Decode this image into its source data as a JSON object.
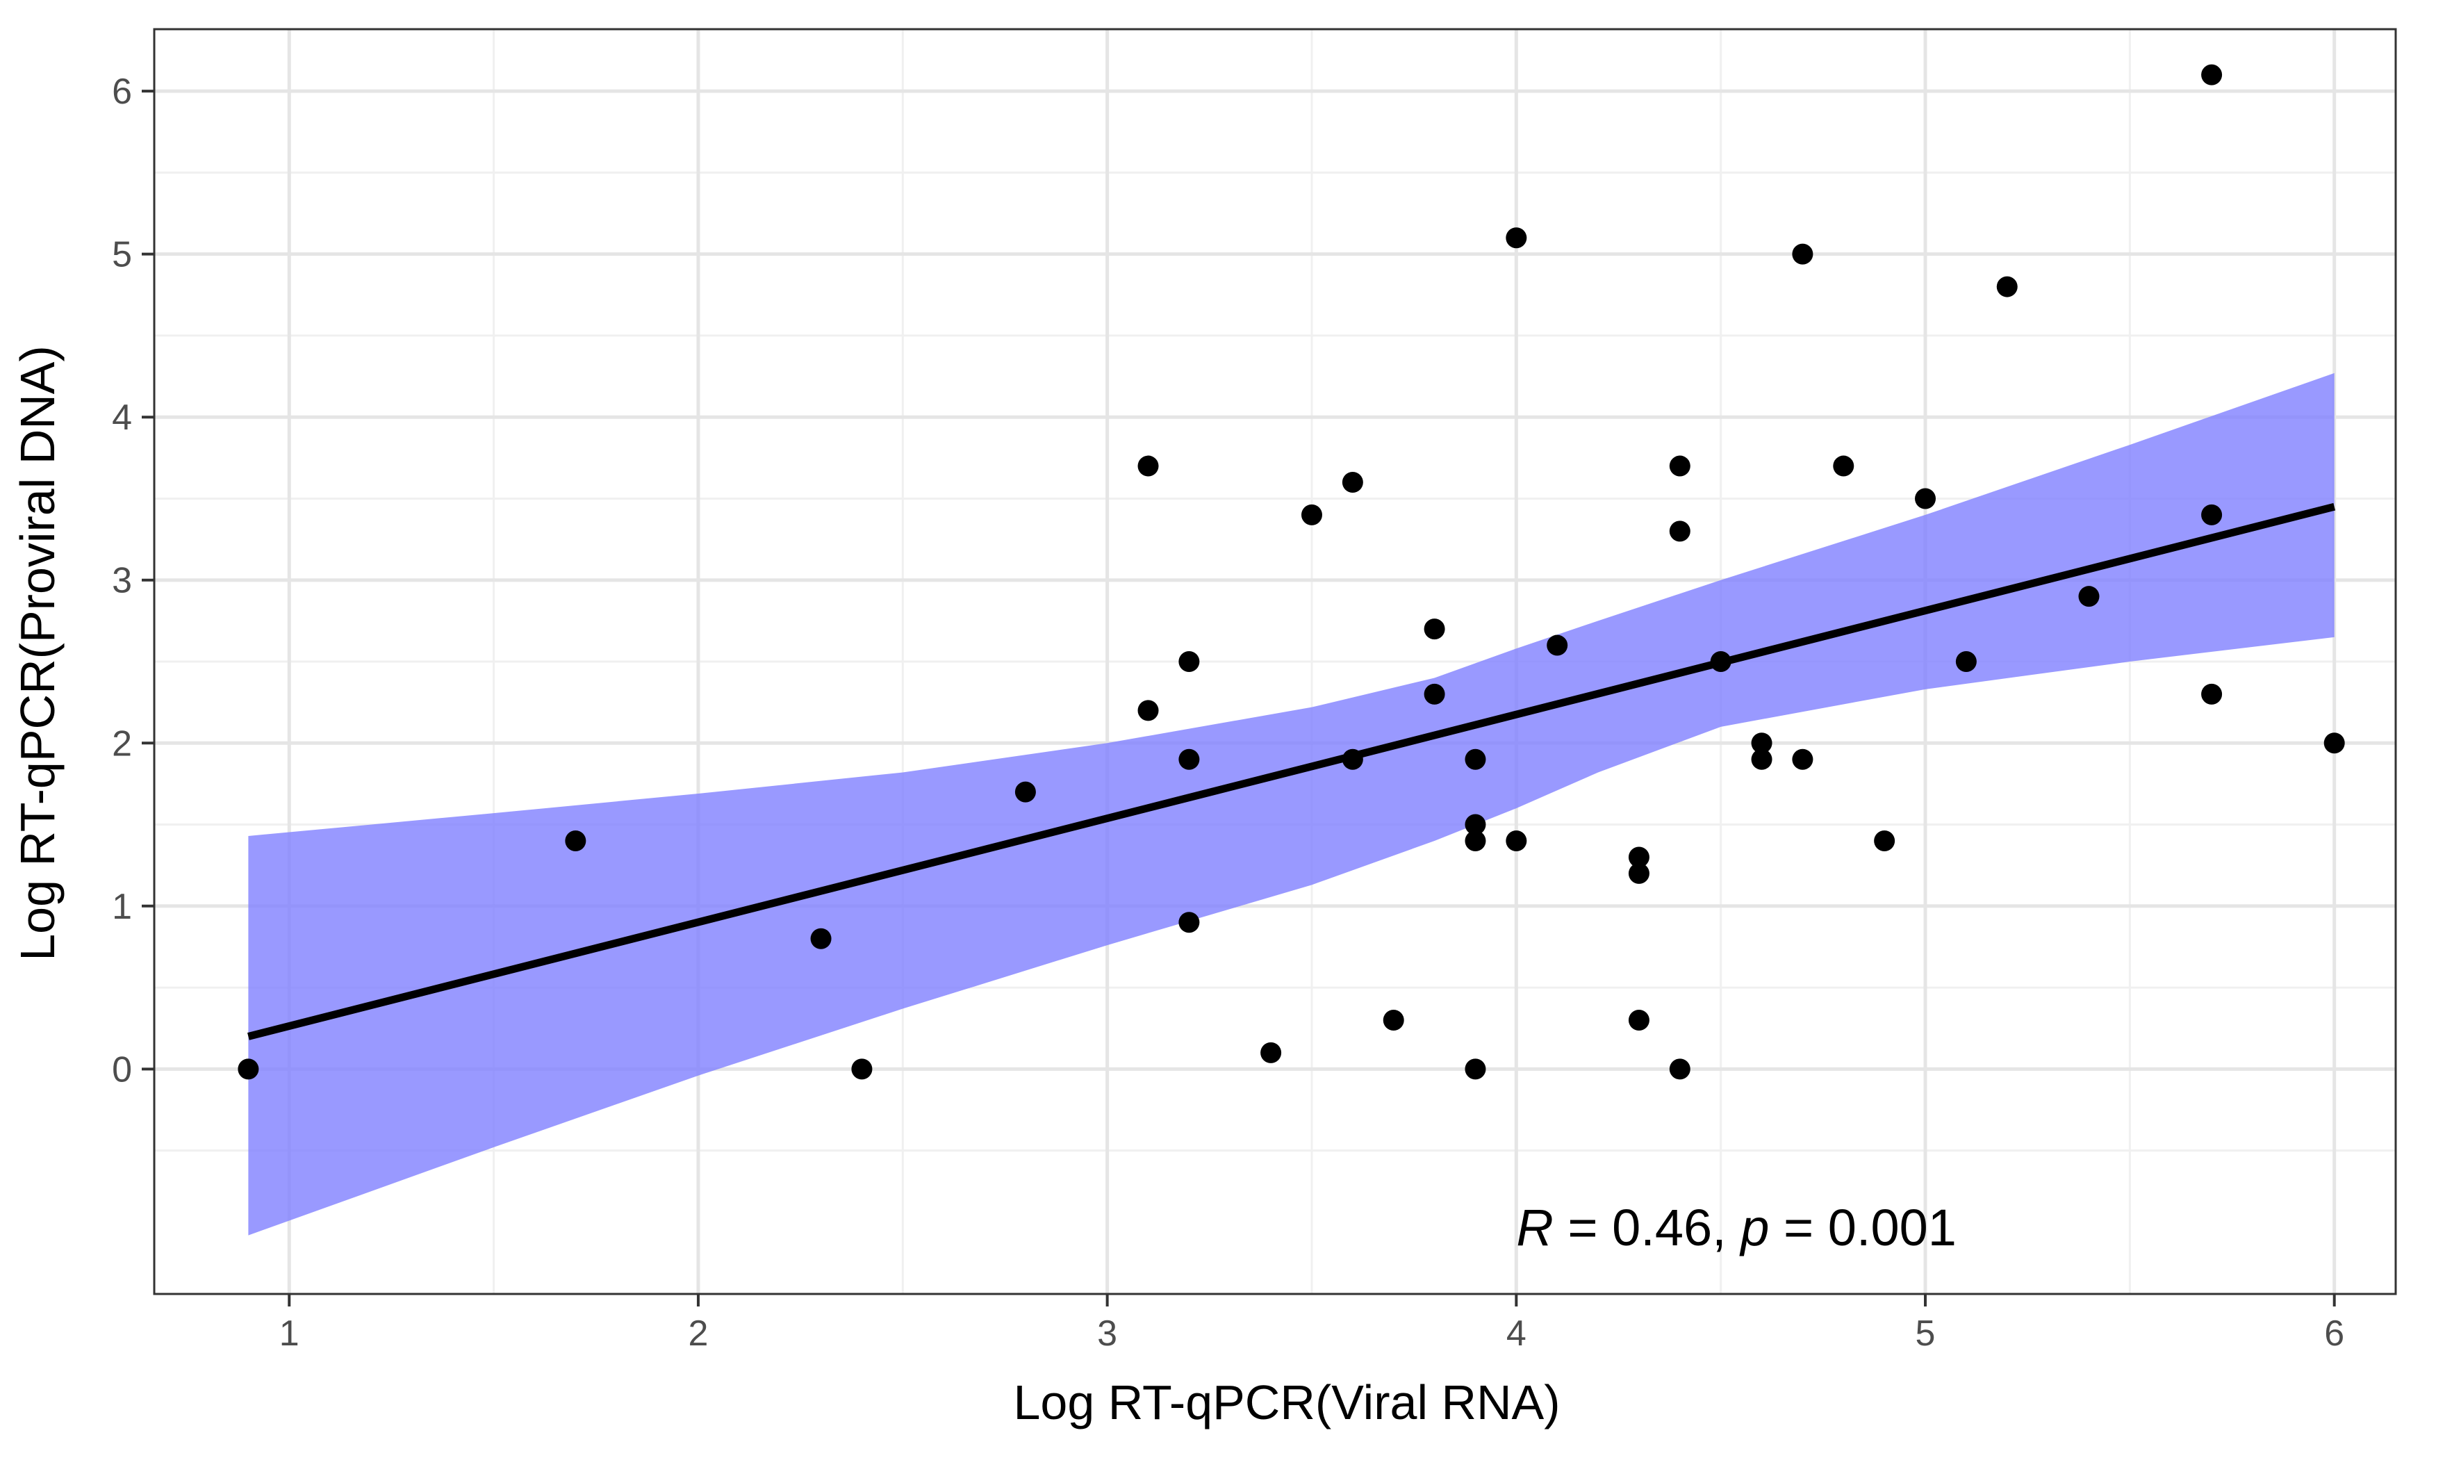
{
  "chart_data": {
    "type": "scatter",
    "title": "",
    "xlabel": "Log RT-qPCR(Viral RNA)",
    "ylabel": "Log RT-qPCR(Proviral DNA)",
    "xlim": [
      0.67,
      6.15
    ],
    "ylim": [
      -1.38,
      6.38
    ],
    "xticks": [
      1,
      2,
      3,
      4,
      5,
      6
    ],
    "yticks": [
      0,
      1,
      2,
      3,
      4,
      5,
      6
    ],
    "xtick_labels": [
      "1",
      "2",
      "3",
      "4",
      "5",
      "6"
    ],
    "ytick_labels": [
      "0",
      "1",
      "2",
      "3",
      "4",
      "5",
      "6"
    ],
    "grid": true,
    "point_color": "#000000",
    "line_color": "#000000",
    "band_color": "#8080ff",
    "points": [
      {
        "x": 0.9,
        "y": 0.0
      },
      {
        "x": 1.7,
        "y": 1.4
      },
      {
        "x": 2.3,
        "y": 0.8
      },
      {
        "x": 2.4,
        "y": 0.0
      },
      {
        "x": 2.8,
        "y": 1.7
      },
      {
        "x": 3.1,
        "y": 3.7
      },
      {
        "x": 3.1,
        "y": 2.2
      },
      {
        "x": 3.2,
        "y": 2.5
      },
      {
        "x": 3.2,
        "y": 1.9
      },
      {
        "x": 3.2,
        "y": 0.9
      },
      {
        "x": 3.4,
        "y": 0.1
      },
      {
        "x": 3.5,
        "y": 3.4
      },
      {
        "x": 3.6,
        "y": 3.6
      },
      {
        "x": 3.6,
        "y": 1.9
      },
      {
        "x": 3.7,
        "y": 0.3
      },
      {
        "x": 3.8,
        "y": 2.7
      },
      {
        "x": 3.8,
        "y": 2.3
      },
      {
        "x": 3.9,
        "y": 1.9
      },
      {
        "x": 3.9,
        "y": 1.5
      },
      {
        "x": 3.9,
        "y": 1.4
      },
      {
        "x": 3.9,
        "y": 0.0
      },
      {
        "x": 4.0,
        "y": 5.1
      },
      {
        "x": 4.0,
        "y": 1.4
      },
      {
        "x": 4.1,
        "y": 2.6
      },
      {
        "x": 4.3,
        "y": 1.3
      },
      {
        "x": 4.3,
        "y": 1.2
      },
      {
        "x": 4.3,
        "y": 0.3
      },
      {
        "x": 4.4,
        "y": 3.7
      },
      {
        "x": 4.4,
        "y": 3.3
      },
      {
        "x": 4.4,
        "y": 0.0
      },
      {
        "x": 4.5,
        "y": 2.5
      },
      {
        "x": 4.6,
        "y": 2.0
      },
      {
        "x": 4.6,
        "y": 1.9
      },
      {
        "x": 4.7,
        "y": 5.0
      },
      {
        "x": 4.7,
        "y": 1.9
      },
      {
        "x": 4.8,
        "y": 3.7
      },
      {
        "x": 4.9,
        "y": 1.4
      },
      {
        "x": 5.0,
        "y": 3.5
      },
      {
        "x": 5.1,
        "y": 2.5
      },
      {
        "x": 5.2,
        "y": 4.8
      },
      {
        "x": 5.4,
        "y": 2.9
      },
      {
        "x": 5.7,
        "y": 6.1
      },
      {
        "x": 5.7,
        "y": 3.4
      },
      {
        "x": 5.7,
        "y": 2.3
      },
      {
        "x": 6.0,
        "y": 2.0
      }
    ],
    "regression": {
      "x": [
        0.9,
        6.0
      ],
      "y": [
        0.2,
        3.45
      ]
    },
    "confidence_band": {
      "x": [
        0.9,
        1.5,
        2.0,
        2.5,
        3.0,
        3.5,
        3.8,
        4.0,
        4.2,
        4.5,
        5.0,
        5.5,
        6.0
      ],
      "lower": [
        -1.02,
        -0.48,
        -0.04,
        0.37,
        0.76,
        1.13,
        1.4,
        1.6,
        1.82,
        2.1,
        2.33,
        2.5,
        2.65
      ],
      "upper": [
        1.43,
        1.57,
        1.69,
        1.82,
        2.0,
        2.22,
        2.4,
        2.58,
        2.75,
        3.0,
        3.4,
        3.83,
        4.27
      ]
    },
    "annotation": {
      "r_label": "R",
      "r_text": " = 0.46, ",
      "p_label": "p",
      "p_text": " = 0.001",
      "x": 4.0,
      "y": -0.97
    }
  }
}
